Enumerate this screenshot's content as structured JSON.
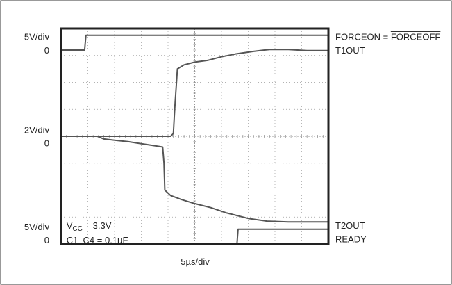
{
  "chart_data": {
    "type": "line",
    "title": "",
    "x_unit": "div",
    "xlabel": "5µs/div",
    "x_range_div": [
      0,
      10
    ],
    "y_range_div": [
      0,
      8
    ],
    "grid": true,
    "colors": {
      "trace": "#555555",
      "grid": "#999999",
      "frame": "#222222",
      "outer_border": "#333333"
    },
    "left_labels": [
      {
        "text": "5V/div",
        "at_div": 7.7
      },
      {
        "text": "0",
        "at_div": 7.2
      },
      {
        "text": "2V/div",
        "at_div": 4.25
      },
      {
        "text": "0",
        "at_div": 3.75
      },
      {
        "text": "5V/div",
        "at_div": 0.65
      },
      {
        "text": "0",
        "at_div": 0.15
      }
    ],
    "series": [
      {
        "name": "FORCEON = FORCEOFF",
        "label_main": "FORCEON = ",
        "label_overline": "FORCEOFF",
        "label_at_div": 7.7,
        "points": [
          [
            0,
            7.2
          ],
          [
            0.88,
            7.2
          ],
          [
            0.93,
            7.75
          ],
          [
            10,
            7.75
          ]
        ]
      },
      {
        "name": "T1OUT",
        "label_main": "T1OUT",
        "label_at_div": 7.2,
        "points": [
          [
            0,
            4.0
          ],
          [
            4.1,
            4.0
          ],
          [
            4.2,
            4.1
          ],
          [
            4.25,
            5.0
          ],
          [
            4.35,
            6.5
          ],
          [
            4.6,
            6.65
          ],
          [
            5.0,
            6.75
          ],
          [
            5.5,
            6.82
          ],
          [
            6.0,
            6.95
          ],
          [
            6.5,
            7.05
          ],
          [
            7.2,
            7.15
          ],
          [
            7.8,
            7.22
          ],
          [
            8.5,
            7.22
          ],
          [
            9.2,
            7.18
          ],
          [
            10,
            7.18
          ]
        ]
      },
      {
        "name": "T2OUT",
        "label_main": "T2OUT",
        "label_at_div": 0.7,
        "points": [
          [
            0,
            4.0
          ],
          [
            1.35,
            4.0
          ],
          [
            1.6,
            3.9
          ],
          [
            2.0,
            3.85
          ],
          [
            2.5,
            3.8
          ],
          [
            3.0,
            3.72
          ],
          [
            3.5,
            3.65
          ],
          [
            3.8,
            3.6
          ],
          [
            3.85,
            3.0
          ],
          [
            3.88,
            2.0
          ],
          [
            4.1,
            1.8
          ],
          [
            4.5,
            1.65
          ],
          [
            5.0,
            1.5
          ],
          [
            5.6,
            1.35
          ],
          [
            6.2,
            1.15
          ],
          [
            7.0,
            0.95
          ],
          [
            7.7,
            0.85
          ],
          [
            8.5,
            0.82
          ],
          [
            10,
            0.82
          ]
        ]
      },
      {
        "name": "READY",
        "label_main": "READY",
        "label_at_div": 0.2,
        "points": [
          [
            0,
            0.0
          ],
          [
            6.58,
            0.0
          ],
          [
            6.62,
            0.55
          ],
          [
            10,
            0.55
          ]
        ]
      }
    ],
    "annotations": [
      {
        "main": "V",
        "sub": "CC",
        "rest": " = 3.3V",
        "at_x_div": 0.2,
        "at_y_div": 0.7
      },
      {
        "text": "C1–C4 = 0.1µF",
        "at_x_div": 0.2,
        "at_y_div": 0.15
      }
    ]
  }
}
